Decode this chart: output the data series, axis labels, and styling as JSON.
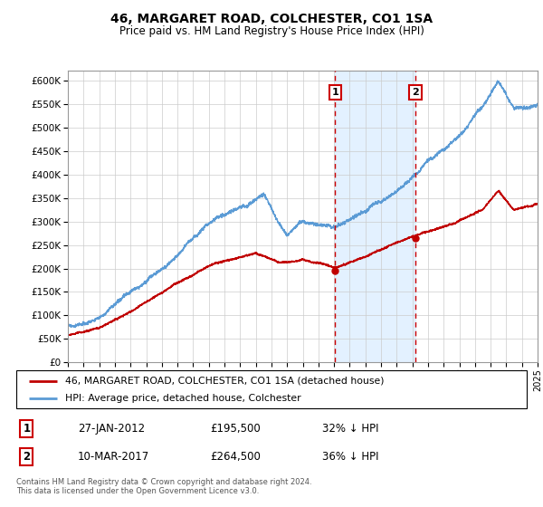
{
  "title": "46, MARGARET ROAD, COLCHESTER, CO1 1SA",
  "subtitle": "Price paid vs. HM Land Registry's House Price Index (HPI)",
  "legend_line1": "46, MARGARET ROAD, COLCHESTER, CO1 1SA (detached house)",
  "legend_line2": "HPI: Average price, detached house, Colchester",
  "annotation1_date": "27-JAN-2012",
  "annotation1_price": "£195,500",
  "annotation1_hpi": "32% ↓ HPI",
  "annotation2_date": "10-MAR-2017",
  "annotation2_price": "£264,500",
  "annotation2_hpi": "36% ↓ HPI",
  "footer": "Contains HM Land Registry data © Crown copyright and database right 2024.\nThis data is licensed under the Open Government Licence v3.0.",
  "sale1_year": 2012.07,
  "sale1_value": 195500,
  "sale2_year": 2017.19,
  "sale2_value": 264500,
  "hpi_color": "#5B9BD5",
  "price_color": "#C00000",
  "shade_color": "#DDEEFF",
  "vline_color": "#CC0000",
  "grid_color": "#CCCCCC",
  "ylim_min": 0,
  "ylim_max": 620000,
  "xlim_start": 1995,
  "xlim_end": 2025
}
